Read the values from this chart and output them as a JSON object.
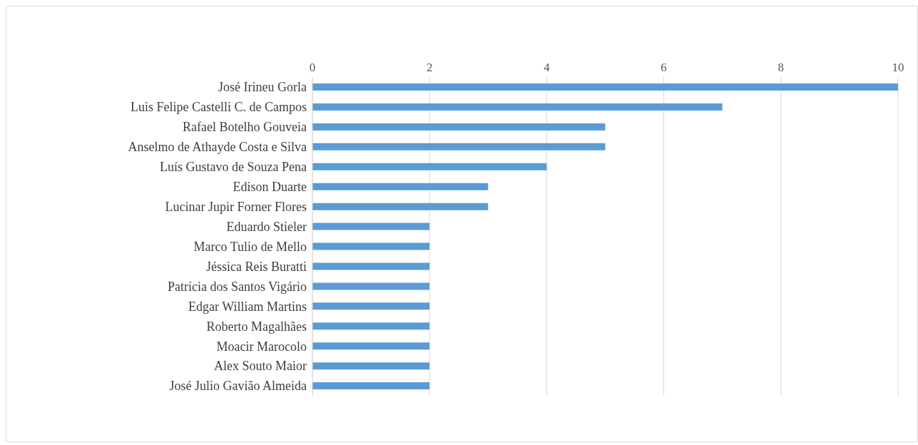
{
  "chart_data": {
    "type": "bar",
    "orientation": "horizontal",
    "categories": [
      "José Irineu Gorla",
      "Luis Felipe Castelli C. de Campos",
      "Rafael Botelho Gouveia",
      "Anselmo de Athayde Costa e Silva",
      "Luís Gustavo de Souza Pena",
      "Edison Duarte",
      "Lucinar Jupir Forner Flores",
      "Eduardo Stieler",
      "Marco Tulio de Mello",
      "Jéssica Reis Buratti",
      "Patrícia dos Santos Vigário",
      "Edgar William Martins",
      "Roberto Magalhães",
      "Moacir Marocolo",
      "Alex Souto Maior",
      "José Julio Gavião Almeida"
    ],
    "values": [
      10,
      7,
      5,
      5,
      4,
      3,
      3,
      2,
      2,
      2,
      2,
      2,
      2,
      2,
      2,
      2
    ],
    "color": "#5b9bd5",
    "xlim": [
      0,
      10
    ],
    "xticks": [
      0,
      2,
      4,
      6,
      8,
      10
    ],
    "grid": "x"
  }
}
